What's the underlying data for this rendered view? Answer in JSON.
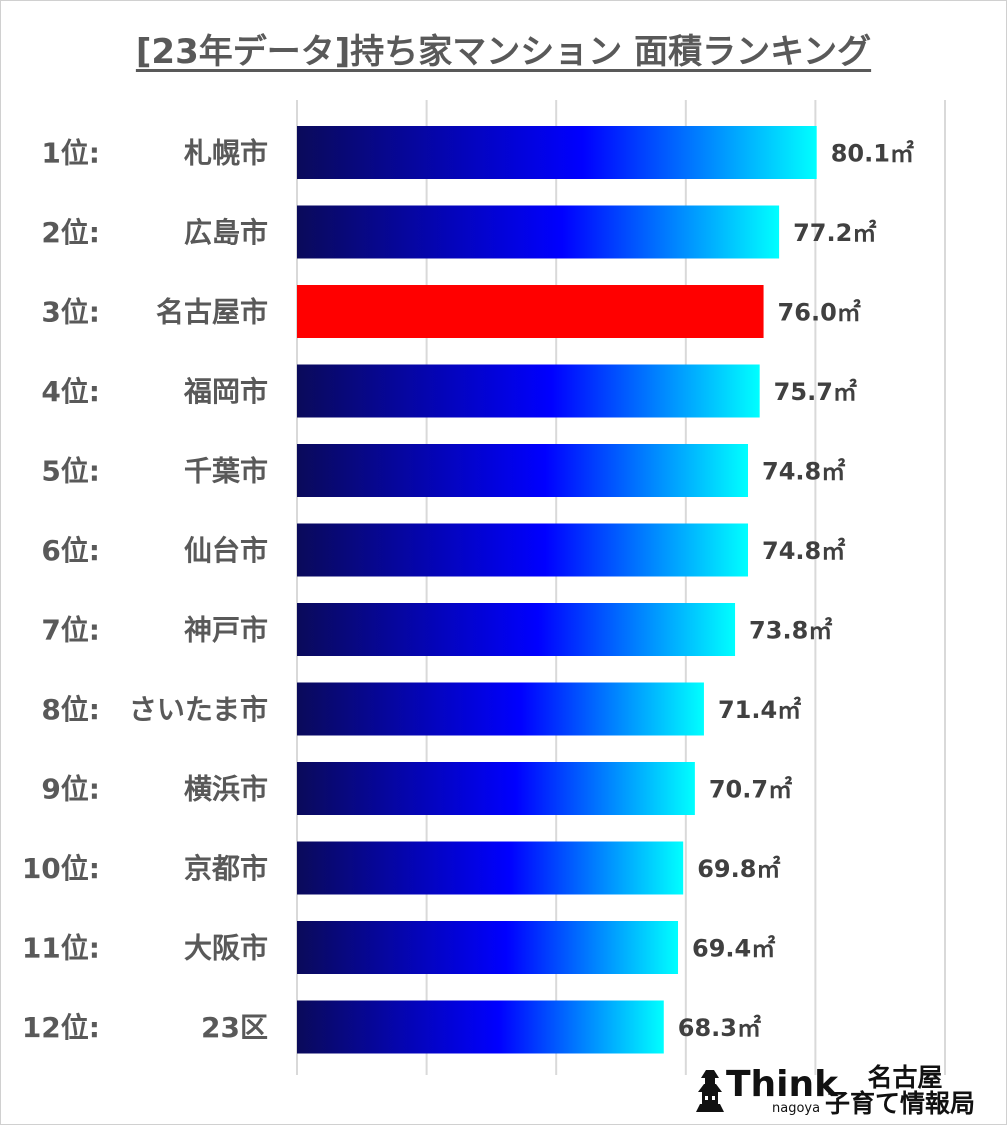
{
  "title": "[23年データ]持ち家マンション 面積ランキング",
  "unit": "㎡",
  "colors": {
    "gradient_start": "#0a0a5a",
    "gradient_mid": "#0000ff",
    "gradient_end": "#00ffff",
    "highlight": "#ff0000",
    "grid": "#d9d9d9",
    "text": "#595959"
  },
  "chart_data": {
    "type": "bar",
    "orientation": "horizontal",
    "title": "[23年データ]持ち家マンション 面積ランキング",
    "categories": [
      "札幌市",
      "広島市",
      "名古屋市",
      "福岡市",
      "千葉市",
      "仙台市",
      "神戸市",
      "さいたま市",
      "横浜市",
      "京都市",
      "大阪市",
      "23区"
    ],
    "ranks": [
      "1位:",
      "2位:",
      "3位:",
      "4位:",
      "5位:",
      "6位:",
      "7位:",
      "8位:",
      "9位:",
      "10位:",
      "11位:",
      "12位:"
    ],
    "values": [
      80.1,
      77.2,
      76.0,
      75.7,
      74.8,
      74.8,
      73.8,
      71.4,
      70.7,
      69.8,
      69.4,
      68.3
    ],
    "value_labels": [
      "80.1",
      "77.2",
      "76.0",
      "75.7",
      "74.8",
      "74.8",
      "73.8",
      "71.4",
      "70.7",
      "69.8",
      "69.4",
      "68.3"
    ],
    "highlight_index": 2,
    "xlim": [
      40,
      90
    ],
    "grid_values": [
      40,
      50,
      60,
      70,
      80,
      90
    ],
    "grid": true,
    "legend": "none"
  },
  "logo": {
    "think": "Think",
    "sub": "nagoya",
    "line1": "名古屋",
    "line2": "子育て情報局"
  }
}
